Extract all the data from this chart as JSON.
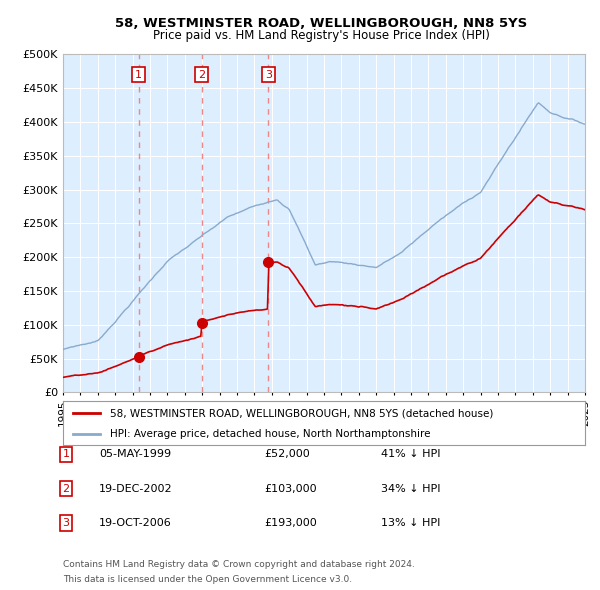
{
  "title_line1": "58, WESTMINSTER ROAD, WELLINGBOROUGH, NN8 5YS",
  "title_line2": "Price paid vs. HM Land Registry's House Price Index (HPI)",
  "legend_red": "58, WESTMINSTER ROAD, WELLINGBOROUGH, NN8 5YS (detached house)",
  "legend_blue": "HPI: Average price, detached house, North Northamptonshire",
  "transactions": [
    {
      "num": 1,
      "date": "05-MAY-1999",
      "year": 1999.35,
      "price": 52000,
      "hpi_pct": "41% ↓ HPI"
    },
    {
      "num": 2,
      "date": "19-DEC-2002",
      "year": 2002.97,
      "price": 103000,
      "hpi_pct": "34% ↓ HPI"
    },
    {
      "num": 3,
      "date": "19-OCT-2006",
      "year": 2006.8,
      "price": 193000,
      "hpi_pct": "13% ↓ HPI"
    }
  ],
  "ylabel_ticks": [
    "£0",
    "£50K",
    "£100K",
    "£150K",
    "£200K",
    "£250K",
    "£300K",
    "£350K",
    "£400K",
    "£450K",
    "£500K"
  ],
  "ytick_vals": [
    0,
    50000,
    100000,
    150000,
    200000,
    250000,
    300000,
    350000,
    400000,
    450000,
    500000
  ],
  "xmin": 1995.0,
  "xmax": 2025.0,
  "ymin": 0,
  "ymax": 500000,
  "background_color": "#ddeeff",
  "grid_color": "#ffffff",
  "red_line_color": "#cc0000",
  "blue_line_color": "#88aacc",
  "dashed_color": "#ee8888",
  "footnote1": "Contains HM Land Registry data © Crown copyright and database right 2024.",
  "footnote2": "This data is licensed under the Open Government Licence v3.0."
}
